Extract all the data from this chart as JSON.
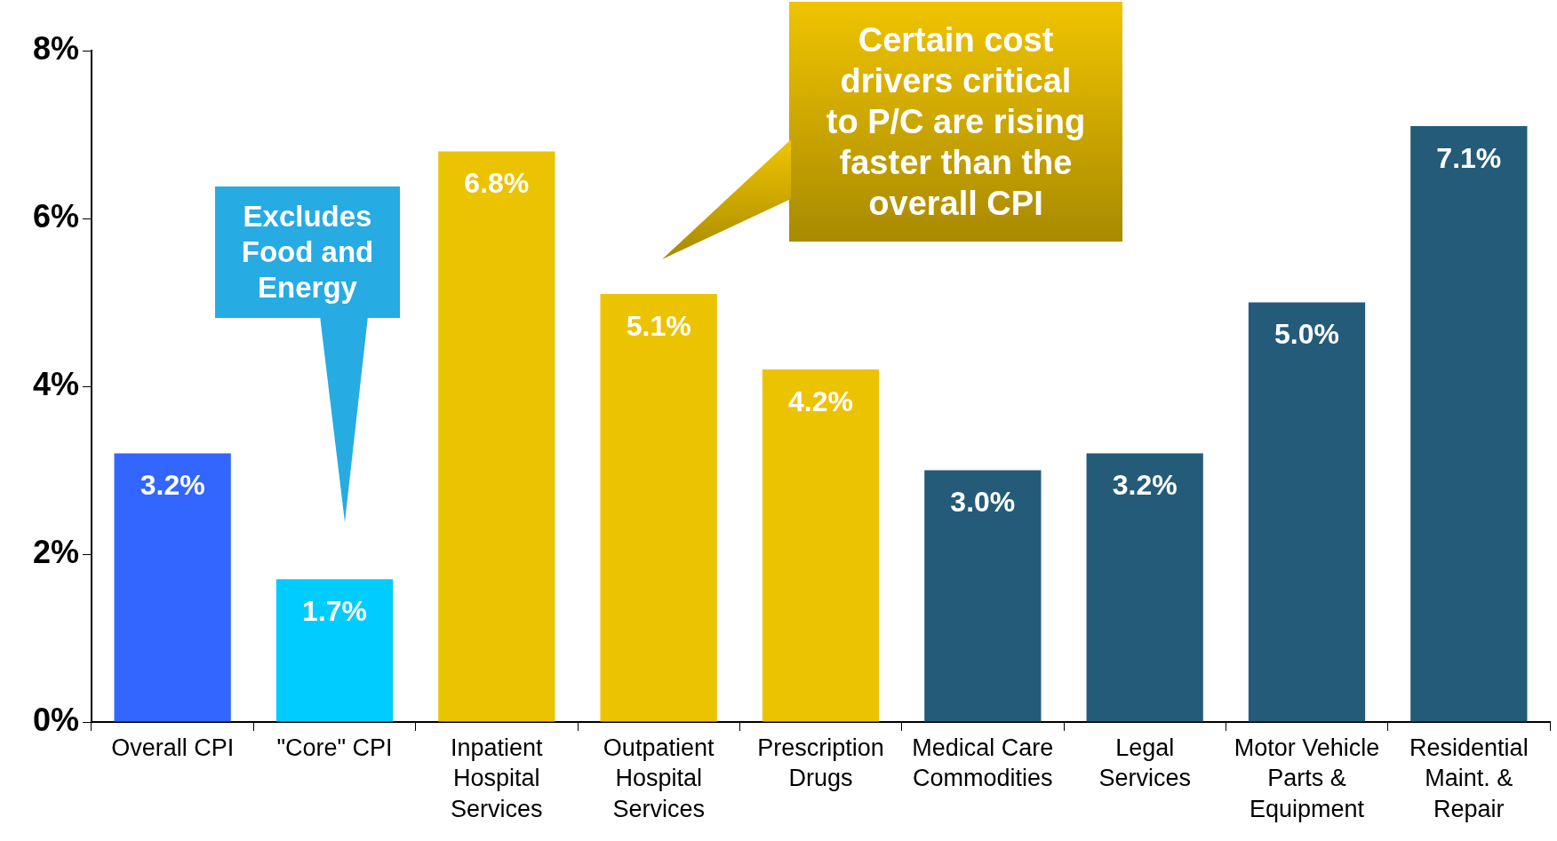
{
  "chart_data": {
    "type": "bar",
    "categories": [
      "Overall CPI",
      "\"Core\" CPI",
      "Inpatient\nHospital\nServices",
      "Outpatient\nHospital\nServices",
      "Prescription\nDrugs",
      "Medical Care\nCommodities",
      "Legal\nServices",
      "Motor Vehicle\nParts &\nEquipment",
      "Residential\nMaint. &\nRepair"
    ],
    "values": [
      3.2,
      1.7,
      6.8,
      5.1,
      4.2,
      3.0,
      3.2,
      5.0,
      7.1
    ],
    "value_labels": [
      "3.2%",
      "1.7%",
      "6.8%",
      "5.1%",
      "4.2%",
      "3.0%",
      "3.2%",
      "5.0%",
      "7.1%"
    ],
    "colors": [
      "#3366ff",
      "#00ccff",
      "#ebc300",
      "#ebc300",
      "#ebc300",
      "#245b79",
      "#245b79",
      "#245b79",
      "#245b79"
    ],
    "ylim": [
      0,
      8
    ],
    "yticks": [
      {
        "value": 0,
        "label": "0%"
      },
      {
        "value": 2,
        "label": "2%"
      },
      {
        "value": 4,
        "label": "4%"
      },
      {
        "value": 6,
        "label": "6%"
      },
      {
        "value": 8,
        "label": "8%"
      }
    ],
    "grid": false,
    "legend": false,
    "annotations": [
      "Excludes\nFood and\nEnergy",
      "Certain cost\ndrivers critical\nto P/C are rising\nfaster than the\noverall CPI"
    ]
  }
}
